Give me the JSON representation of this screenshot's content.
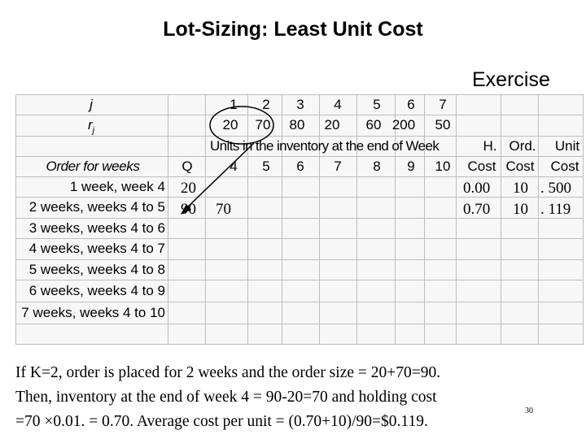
{
  "title": "Lot-Sizing: Least Unit Cost",
  "exercise_label": "Exercise",
  "table": {
    "row_j_label": "j",
    "row_r_label": "r",
    "row_r_sub": "j",
    "weeks_j": [
      "1",
      "2",
      "3",
      "4",
      "5",
      "6",
      "7"
    ],
    "requirements": [
      "20",
      "70",
      "80",
      "20",
      "60",
      "200",
      "50"
    ],
    "inventory_header": "Units in the inventory at the end of Week",
    "order_for_weeks_label": "Order for weeks",
    "q_label": "Q",
    "end_weeks": [
      "4",
      "5",
      "6",
      "7",
      "8",
      "9",
      "10"
    ],
    "cost_headers_top": [
      "H.",
      "Ord.",
      "Unit"
    ],
    "cost_headers_bottom": [
      "Cost",
      "Cost",
      "Cost"
    ],
    "order_options": [
      "1 week, week 4",
      "2 weeks, weeks 4 to 5",
      "3 weeks, weeks 4 to 6",
      "4 weeks, weeks 4 to 7",
      "5 weeks, weeks 4 to 8",
      "6 weeks, weeks 4 to 9",
      "7 weeks, weeks 4 to 10"
    ],
    "filled_rows": [
      {
        "q": "20",
        "inv": "",
        "h_cost": "0.00",
        "ord_cost": "10",
        "unit_cost": ". 500"
      },
      {
        "q": "90",
        "inv": "70",
        "h_cost": "0.70",
        "ord_cost": "10",
        "unit_cost": ". 119"
      }
    ]
  },
  "footnote": {
    "line1": "If K=2, order is placed for 2 weeks and the order size = 20+70=90.",
    "line2": "Then, inventory at the end of week 4 = 90-20=70 and holding cost",
    "line3": "=70 ×0.01. = 0.70. Average cost per unit = (0.70+10)/90=$0.119.",
    "page_number": "30"
  },
  "annotation_color": "#000000"
}
